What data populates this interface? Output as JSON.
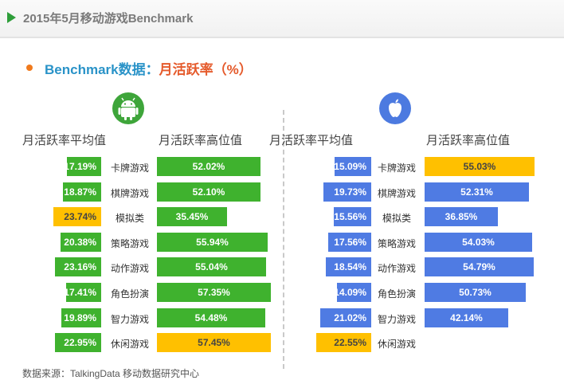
{
  "header": {
    "title": "2015年5月移动游戏Benchmark"
  },
  "subtitle": {
    "part_a": "Benchmark数据：",
    "part_b": "月活跃率（%）"
  },
  "colors": {
    "android": "#3fb22e",
    "ios": "#4f7be3",
    "highlight": "#ffc000",
    "title_blue": "#2a93c8",
    "title_red": "#e55a2b"
  },
  "icons": {
    "android": "android-robot-icon",
    "ios": "apple-icon"
  },
  "source": "数据来源：TalkingData 移动数据研究中心",
  "chart_data": [
    {
      "type": "bar",
      "platform": "android-icon",
      "categories": [
        "卡牌游戏",
        "棋牌游戏",
        "模拟类",
        "策略游戏",
        "动作游戏",
        "角色扮演",
        "智力游戏",
        "休闲游戏"
      ],
      "series": [
        {
          "name": "月活跃率平均值",
          "values": [
            17.19,
            18.87,
            23.74,
            20.38,
            23.16,
            17.41,
            19.89,
            22.95
          ],
          "labels": [
            "17.19%",
            "18.87%",
            "23.74%",
            "20.38%",
            "23.16%",
            "17.41%",
            "19.89%",
            "22.95%"
          ],
          "highlight_index": 2
        },
        {
          "name": "月活跃率高位值",
          "values": [
            52.02,
            52.1,
            35.45,
            55.94,
            55.04,
            57.35,
            54.48,
            57.45
          ],
          "labels": [
            "52.02%",
            "52.10%",
            "35.45%",
            "55.94%",
            "55.04%",
            "57.35%",
            "54.48%",
            "57.45%"
          ],
          "highlight_index": 7
        }
      ]
    },
    {
      "type": "bar",
      "platform": "apple-icon",
      "categories": [
        "卡牌游戏",
        "棋牌游戏",
        "模拟类",
        "策略游戏",
        "动作游戏",
        "角色扮演",
        "智力游戏",
        "休闲游戏"
      ],
      "series": [
        {
          "name": "月活跃率平均值",
          "values": [
            15.09,
            19.73,
            15.56,
            17.56,
            18.54,
            14.09,
            21.02,
            22.55
          ],
          "labels": [
            "15.09%",
            "19.73%",
            "15.56%",
            "17.56%",
            "18.54%",
            "14.09%",
            "21.02%",
            "22.55%"
          ],
          "highlight_index": 7
        },
        {
          "name": "月活跃率高位值",
          "values": [
            55.03,
            52.31,
            36.85,
            54.03,
            54.79,
            50.73,
            42.14,
            null
          ],
          "labels": [
            "55.03%",
            "52.31%",
            "36.85%",
            "54.03%",
            "54.79%",
            "50.73%",
            "42.14%",
            ""
          ],
          "highlight_index": 0
        }
      ]
    }
  ]
}
